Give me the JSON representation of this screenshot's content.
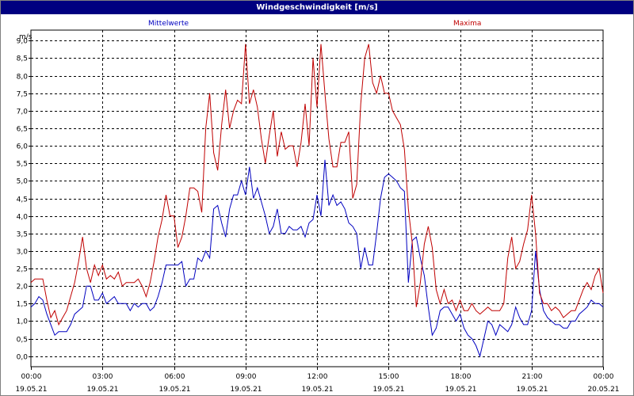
{
  "window": {
    "title": "Windgeschwindigkeit [m/s]"
  },
  "colors": {
    "mittelwerte": "#0000c0",
    "maxima": "#c00000",
    "grid": "#000000",
    "background": "#ffffff",
    "title_bar": "#000080"
  },
  "chart_data": {
    "type": "line",
    "title": "Windgeschwindigkeit [m/s]",
    "ylabel": "m/s",
    "xlabel": "",
    "ylim": [
      -0.3,
      9.3
    ],
    "xlim": [
      0,
      1440
    ],
    "x_unit": "minutes",
    "grid": true,
    "legend_placement": "top",
    "yticks": [
      {
        "value": 0,
        "label": "0,0"
      },
      {
        "value": 0.5,
        "label": "0,5"
      },
      {
        "value": 1,
        "label": "1,0"
      },
      {
        "value": 1.5,
        "label": "1,5"
      },
      {
        "value": 2,
        "label": "2,0"
      },
      {
        "value": 2.5,
        "label": "2,5"
      },
      {
        "value": 3,
        "label": "3,0"
      },
      {
        "value": 3.5,
        "label": "3,5"
      },
      {
        "value": 4,
        "label": "4,0"
      },
      {
        "value": 4.5,
        "label": "4,5"
      },
      {
        "value": 5,
        "label": "5,0"
      },
      {
        "value": 5.5,
        "label": "5,5"
      },
      {
        "value": 6,
        "label": "6,0"
      },
      {
        "value": 6.5,
        "label": "6,5"
      },
      {
        "value": 7,
        "label": "7,0"
      },
      {
        "value": 7.5,
        "label": "7,5"
      },
      {
        "value": 8,
        "label": "8,0"
      },
      {
        "value": 8.5,
        "label": "8,5"
      },
      {
        "value": 9,
        "label": "9,0"
      }
    ],
    "xticks": [
      {
        "value": 0,
        "time": "00:00",
        "date": "19.05.21"
      },
      {
        "value": 180,
        "time": "03:00",
        "date": "19.05.21"
      },
      {
        "value": 360,
        "time": "06:00",
        "date": "19.05.21"
      },
      {
        "value": 540,
        "time": "09:00",
        "date": "19.05.21"
      },
      {
        "value": 720,
        "time": "12:00",
        "date": "19.05.21"
      },
      {
        "value": 900,
        "time": "15:00",
        "date": "19.05.21"
      },
      {
        "value": 1080,
        "time": "18:00",
        "date": "19.05.21"
      },
      {
        "value": 1260,
        "time": "21:00",
        "date": "19.05.21"
      },
      {
        "value": 1440,
        "time": "00:00",
        "date": "20.05.21"
      }
    ],
    "series": [
      {
        "name": "Mittelwerte",
        "color": "#0000c0",
        "points": [
          [
            0,
            1.4
          ],
          [
            10,
            1.5
          ],
          [
            20,
            1.7
          ],
          [
            30,
            1.6
          ],
          [
            40,
            1.2
          ],
          [
            50,
            0.9
          ],
          [
            60,
            0.6
          ],
          [
            70,
            0.7
          ],
          [
            80,
            0.7
          ],
          [
            90,
            0.7
          ],
          [
            100,
            0.9
          ],
          [
            110,
            1.2
          ],
          [
            120,
            1.3
          ],
          [
            130,
            1.4
          ],
          [
            140,
            2.0
          ],
          [
            150,
            2.0
          ],
          [
            160,
            1.6
          ],
          [
            170,
            1.6
          ],
          [
            180,
            1.8
          ],
          [
            190,
            1.5
          ],
          [
            200,
            1.6
          ],
          [
            210,
            1.7
          ],
          [
            220,
            1.5
          ],
          [
            230,
            1.5
          ],
          [
            240,
            1.5
          ],
          [
            250,
            1.3
          ],
          [
            260,
            1.5
          ],
          [
            270,
            1.4
          ],
          [
            280,
            1.5
          ],
          [
            290,
            1.5
          ],
          [
            300,
            1.3
          ],
          [
            310,
            1.4
          ],
          [
            320,
            1.7
          ],
          [
            330,
            2.1
          ],
          [
            340,
            2.6
          ],
          [
            350,
            2.6
          ],
          [
            360,
            2.6
          ],
          [
            370,
            2.6
          ],
          [
            380,
            2.7
          ],
          [
            390,
            2.0
          ],
          [
            400,
            2.2
          ],
          [
            410,
            2.2
          ],
          [
            420,
            2.8
          ],
          [
            430,
            2.7
          ],
          [
            440,
            3.0
          ],
          [
            450,
            2.8
          ],
          [
            460,
            4.2
          ],
          [
            470,
            4.3
          ],
          [
            480,
            3.8
          ],
          [
            490,
            3.4
          ],
          [
            500,
            4.2
          ],
          [
            510,
            4.6
          ],
          [
            520,
            4.6
          ],
          [
            530,
            5.0
          ],
          [
            540,
            4.6
          ],
          [
            550,
            5.4
          ],
          [
            560,
            4.5
          ],
          [
            570,
            4.8
          ],
          [
            580,
            4.4
          ],
          [
            590,
            4.0
          ],
          [
            600,
            3.5
          ],
          [
            610,
            3.7
          ],
          [
            620,
            4.2
          ],
          [
            630,
            3.5
          ],
          [
            640,
            3.5
          ],
          [
            650,
            3.7
          ],
          [
            660,
            3.6
          ],
          [
            670,
            3.6
          ],
          [
            680,
            3.7
          ],
          [
            690,
            3.4
          ],
          [
            700,
            3.8
          ],
          [
            710,
            3.9
          ],
          [
            720,
            4.6
          ],
          [
            730,
            4.0
          ],
          [
            740,
            5.6
          ],
          [
            750,
            4.3
          ],
          [
            760,
            4.6
          ],
          [
            770,
            4.3
          ],
          [
            780,
            4.4
          ],
          [
            790,
            4.2
          ],
          [
            800,
            3.8
          ],
          [
            810,
            3.7
          ],
          [
            820,
            3.5
          ],
          [
            830,
            2.5
          ],
          [
            840,
            3.1
          ],
          [
            850,
            2.6
          ],
          [
            860,
            2.6
          ],
          [
            870,
            3.5
          ],
          [
            880,
            4.5
          ],
          [
            890,
            5.1
          ],
          [
            900,
            5.2
          ],
          [
            910,
            5.1
          ],
          [
            920,
            5.0
          ],
          [
            930,
            4.8
          ],
          [
            940,
            4.7
          ],
          [
            950,
            2.1
          ],
          [
            960,
            3.3
          ],
          [
            970,
            3.4
          ],
          [
            980,
            2.8
          ],
          [
            990,
            2.3
          ],
          [
            1000,
            1.4
          ],
          [
            1010,
            0.6
          ],
          [
            1020,
            0.8
          ],
          [
            1030,
            1.3
          ],
          [
            1040,
            1.4
          ],
          [
            1050,
            1.4
          ],
          [
            1060,
            1.2
          ],
          [
            1070,
            1.0
          ],
          [
            1080,
            1.2
          ],
          [
            1090,
            0.8
          ],
          [
            1100,
            0.6
          ],
          [
            1110,
            0.5
          ],
          [
            1120,
            0.3
          ],
          [
            1130,
            0.0
          ],
          [
            1140,
            0.5
          ],
          [
            1150,
            1.0
          ],
          [
            1160,
            0.9
          ],
          [
            1170,
            0.6
          ],
          [
            1180,
            0.9
          ],
          [
            1190,
            0.8
          ],
          [
            1200,
            0.7
          ],
          [
            1210,
            0.9
          ],
          [
            1220,
            1.4
          ],
          [
            1230,
            1.1
          ],
          [
            1240,
            0.9
          ],
          [
            1250,
            0.9
          ],
          [
            1260,
            1.3
          ],
          [
            1270,
            3.0
          ],
          [
            1280,
            1.9
          ],
          [
            1290,
            1.3
          ],
          [
            1300,
            1.1
          ],
          [
            1310,
            1.0
          ],
          [
            1320,
            0.9
          ],
          [
            1330,
            0.9
          ],
          [
            1340,
            0.8
          ],
          [
            1350,
            0.8
          ],
          [
            1360,
            1.0
          ],
          [
            1370,
            1.0
          ],
          [
            1380,
            1.2
          ],
          [
            1390,
            1.3
          ],
          [
            1400,
            1.4
          ],
          [
            1410,
            1.6
          ],
          [
            1420,
            1.5
          ],
          [
            1430,
            1.5
          ],
          [
            1440,
            1.4
          ]
        ]
      },
      {
        "name": "Maxima",
        "color": "#c00000",
        "points": [
          [
            0,
            2.1
          ],
          [
            10,
            2.2
          ],
          [
            20,
            2.2
          ],
          [
            30,
            2.2
          ],
          [
            40,
            1.6
          ],
          [
            50,
            1.1
          ],
          [
            60,
            1.3
          ],
          [
            70,
            0.9
          ],
          [
            80,
            1.1
          ],
          [
            90,
            1.3
          ],
          [
            100,
            1.7
          ],
          [
            110,
            2.1
          ],
          [
            120,
            2.7
          ],
          [
            130,
            3.4
          ],
          [
            140,
            2.5
          ],
          [
            150,
            2.1
          ],
          [
            160,
            2.6
          ],
          [
            170,
            2.3
          ],
          [
            180,
            2.6
          ],
          [
            190,
            2.2
          ],
          [
            200,
            2.3
          ],
          [
            210,
            2.2
          ],
          [
            220,
            2.4
          ],
          [
            230,
            2.0
          ],
          [
            240,
            2.1
          ],
          [
            250,
            2.1
          ],
          [
            260,
            2.1
          ],
          [
            270,
            2.2
          ],
          [
            280,
            2.0
          ],
          [
            290,
            1.7
          ],
          [
            300,
            2.1
          ],
          [
            310,
            2.7
          ],
          [
            320,
            3.4
          ],
          [
            330,
            3.9
          ],
          [
            340,
            4.6
          ],
          [
            350,
            4.0
          ],
          [
            360,
            4.0
          ],
          [
            370,
            3.1
          ],
          [
            380,
            3.4
          ],
          [
            390,
            4.0
          ],
          [
            400,
            4.8
          ],
          [
            410,
            4.8
          ],
          [
            420,
            4.7
          ],
          [
            430,
            4.1
          ],
          [
            440,
            6.5
          ],
          [
            450,
            7.5
          ],
          [
            460,
            5.8
          ],
          [
            470,
            5.3
          ],
          [
            480,
            6.6
          ],
          [
            490,
            7.6
          ],
          [
            500,
            6.5
          ],
          [
            510,
            7.0
          ],
          [
            520,
            7.3
          ],
          [
            530,
            7.2
          ],
          [
            540,
            8.9
          ],
          [
            550,
            7.2
          ],
          [
            560,
            7.6
          ],
          [
            570,
            7.1
          ],
          [
            580,
            6.2
          ],
          [
            590,
            5.5
          ],
          [
            600,
            6.3
          ],
          [
            610,
            7.0
          ],
          [
            620,
            5.7
          ],
          [
            630,
            6.4
          ],
          [
            640,
            5.9
          ],
          [
            650,
            6.0
          ],
          [
            660,
            6.0
          ],
          [
            670,
            5.4
          ],
          [
            680,
            6.1
          ],
          [
            690,
            7.2
          ],
          [
            700,
            6.0
          ],
          [
            710,
            8.5
          ],
          [
            720,
            7.1
          ],
          [
            730,
            8.9
          ],
          [
            740,
            7.5
          ],
          [
            750,
            6.2
          ],
          [
            760,
            5.4
          ],
          [
            770,
            5.4
          ],
          [
            780,
            6.1
          ],
          [
            790,
            6.1
          ],
          [
            800,
            6.4
          ],
          [
            810,
            4.5
          ],
          [
            820,
            4.9
          ],
          [
            830,
            7.2
          ],
          [
            840,
            8.5
          ],
          [
            850,
            8.9
          ],
          [
            860,
            7.8
          ],
          [
            870,
            7.5
          ],
          [
            880,
            8.0
          ],
          [
            890,
            7.5
          ],
          [
            900,
            7.5
          ],
          [
            910,
            7.0
          ],
          [
            920,
            6.8
          ],
          [
            930,
            6.6
          ],
          [
            940,
            5.9
          ],
          [
            950,
            4.2
          ],
          [
            960,
            3.2
          ],
          [
            970,
            1.4
          ],
          [
            980,
            2.1
          ],
          [
            990,
            3.2
          ],
          [
            1000,
            3.7
          ],
          [
            1010,
            3.1
          ],
          [
            1020,
            1.9
          ],
          [
            1030,
            1.5
          ],
          [
            1040,
            1.9
          ],
          [
            1050,
            1.5
          ],
          [
            1060,
            1.6
          ],
          [
            1070,
            1.3
          ],
          [
            1080,
            1.6
          ],
          [
            1090,
            1.3
          ],
          [
            1100,
            1.3
          ],
          [
            1110,
            1.5
          ],
          [
            1120,
            1.3
          ],
          [
            1130,
            1.2
          ],
          [
            1140,
            1.3
          ],
          [
            1150,
            1.4
          ],
          [
            1160,
            1.3
          ],
          [
            1170,
            1.3
          ],
          [
            1180,
            1.3
          ],
          [
            1190,
            1.5
          ],
          [
            1200,
            2.8
          ],
          [
            1210,
            3.4
          ],
          [
            1220,
            2.5
          ],
          [
            1230,
            2.7
          ],
          [
            1240,
            3.2
          ],
          [
            1250,
            3.6
          ],
          [
            1260,
            4.6
          ],
          [
            1270,
            3.5
          ],
          [
            1280,
            1.8
          ],
          [
            1290,
            1.5
          ],
          [
            1300,
            1.5
          ],
          [
            1310,
            1.3
          ],
          [
            1320,
            1.4
          ],
          [
            1330,
            1.3
          ],
          [
            1340,
            1.1
          ],
          [
            1350,
            1.2
          ],
          [
            1360,
            1.3
          ],
          [
            1370,
            1.3
          ],
          [
            1380,
            1.6
          ],
          [
            1390,
            1.9
          ],
          [
            1400,
            2.1
          ],
          [
            1410,
            1.9
          ],
          [
            1420,
            2.3
          ],
          [
            1430,
            2.5
          ],
          [
            1440,
            1.8
          ]
        ]
      }
    ]
  }
}
